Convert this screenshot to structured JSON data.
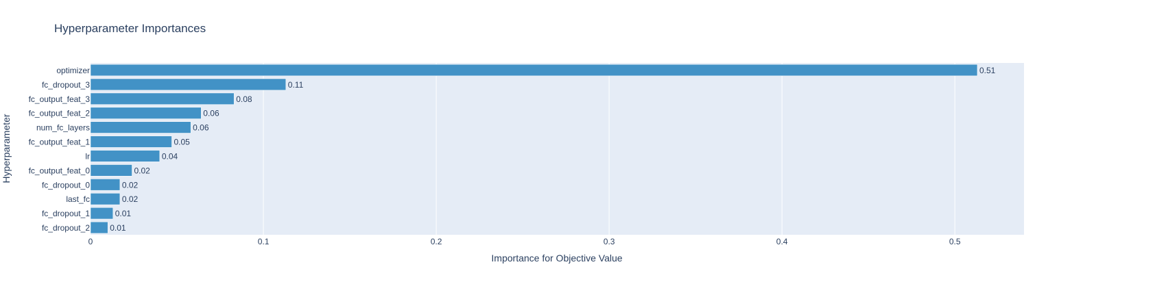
{
  "chart_data": {
    "type": "bar",
    "orientation": "horizontal",
    "title": "Hyperparameter Importances",
    "xlabel": "Importance for Objective Value",
    "ylabel": "Hyperparameter",
    "categories": [
      "optimizer",
      "fc_dropout_3",
      "fc_output_feat_3",
      "fc_output_feat_2",
      "num_fc_layers",
      "fc_output_feat_1",
      "lr",
      "fc_output_feat_0",
      "fc_dropout_0",
      "last_fc",
      "fc_dropout_1",
      "fc_dropout_2"
    ],
    "values": [
      0.513,
      0.113,
      0.083,
      0.064,
      0.058,
      0.047,
      0.04,
      0.024,
      0.017,
      0.017,
      0.013,
      0.01
    ],
    "value_labels": [
      "0.51",
      "0.11",
      "0.08",
      "0.06",
      "0.06",
      "0.05",
      "0.04",
      "0.02",
      "0.02",
      "0.02",
      "0.01",
      "0.01"
    ],
    "xlim": [
      0,
      0.54
    ],
    "xticks": [
      0,
      0.1,
      0.2,
      0.3,
      0.4,
      0.5
    ],
    "xtick_labels": [
      "0",
      "0.1",
      "0.2",
      "0.3",
      "0.4",
      "0.5"
    ],
    "grid": true,
    "bar_color": "#4292c6",
    "plot_background": "#e5ecf6",
    "text_color": "#2a3f5f"
  }
}
